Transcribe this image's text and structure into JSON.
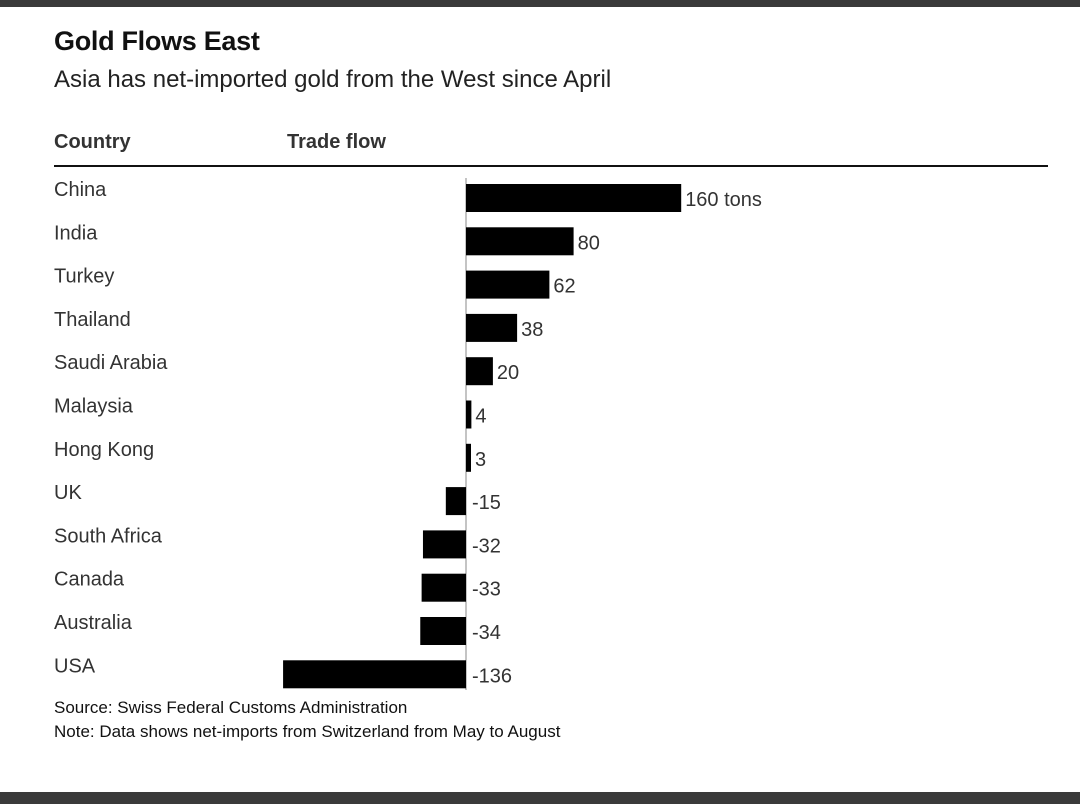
{
  "title": "Gold Flows East",
  "subtitle": "Asia has net-imported gold from the West since April",
  "headers": {
    "country": "Country",
    "flow": "Trade flow"
  },
  "chart_data": {
    "type": "bar",
    "orientation": "horizontal",
    "title": "Gold Flows East",
    "subtitle": "Asia has net-imported gold from the West since April",
    "unit": "tons",
    "categories": [
      "China",
      "India",
      "Turkey",
      "Thailand",
      "Saudi Arabia",
      "Malaysia",
      "Hong Kong",
      "UK",
      "South Africa",
      "Canada",
      "Australia",
      "USA"
    ],
    "values": [
      160,
      80,
      62,
      38,
      20,
      4,
      3,
      -15,
      -32,
      -33,
      -34,
      -136
    ],
    "value_labels": [
      "160 tons",
      "80",
      "62",
      "38",
      "20",
      "4",
      "3",
      "-15",
      "-32",
      "-33",
      "-34",
      "-136"
    ],
    "bar_color": "#000000"
  },
  "footer": {
    "source": "Source: Swiss Federal Customs Administration",
    "note": "Note: Data shows net-imports from Switzerland from May to August"
  }
}
